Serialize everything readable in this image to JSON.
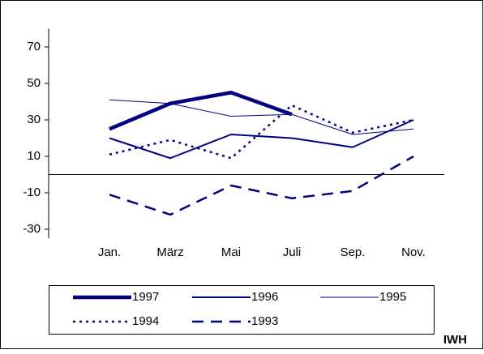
{
  "chart_data": {
    "type": "line",
    "categories": [
      "Jan.",
      "März",
      "Mai",
      "Juli",
      "Sep.",
      "Nov."
    ],
    "series": [
      {
        "name": "1997",
        "color": "#000080",
        "width": 4.5,
        "dash": "none",
        "values": [
          25,
          39,
          45,
          33,
          null,
          null
        ]
      },
      {
        "name": "1996",
        "color": "#000080",
        "width": 2,
        "dash": "none",
        "values": [
          20,
          9,
          22,
          20,
          15,
          30
        ]
      },
      {
        "name": "1995",
        "color": "#000080",
        "width": 1,
        "dash": "none",
        "values": [
          41,
          39,
          32,
          33,
          22,
          25
        ]
      },
      {
        "name": "1994",
        "color": "#000080",
        "width": 2.5,
        "dash": "3,5",
        "values": [
          11,
          19,
          9,
          38,
          23,
          30
        ]
      },
      {
        "name": "1993",
        "color": "#000080",
        "width": 2.5,
        "dash": "14,9",
        "values": [
          -11,
          -22,
          -6,
          -13,
          -9,
          10
        ]
      }
    ],
    "ylim": [
      -35,
      80
    ],
    "yticks": [
      -30,
      -10,
      10,
      30,
      50,
      70
    ],
    "grid": false,
    "legend": "bottom",
    "source": "IWH"
  }
}
